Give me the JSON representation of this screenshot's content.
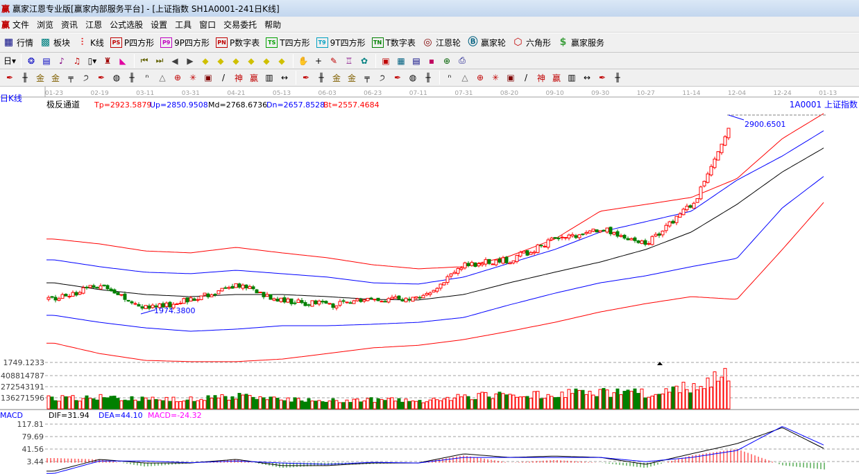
{
  "window": {
    "logo": "赢",
    "title": "赢家江恩专业版[赢家内部服务平台] - [上证指数  SH1A0001-241日K线]"
  },
  "menu": [
    "文件",
    "浏览",
    "资讯",
    "江恩",
    "公式选股",
    "设置",
    "工具",
    "窗口",
    "交易委托",
    "帮助"
  ],
  "toolbar1": [
    {
      "label": "行情",
      "icon": "quote-table-icon",
      "glyph": "▦",
      "color": "#000080"
    },
    {
      "label": "板块",
      "icon": "sector-blocks-icon",
      "glyph": "▩",
      "color": "#008080"
    },
    {
      "label": "K线",
      "icon": "candlestick-icon",
      "glyph": "⫶",
      "color": "#e00000"
    },
    {
      "label": "P四方形",
      "icon": "ps-icon",
      "glyph": "PS",
      "color": "#c00000"
    },
    {
      "label": "9P四方形",
      "icon": "p9-icon",
      "glyph": "P9",
      "color": "#c000c0"
    },
    {
      "label": "P数字表",
      "icon": "pn-icon",
      "glyph": "PN",
      "color": "#c00000"
    },
    {
      "label": "T四方形",
      "icon": "ts-icon",
      "glyph": "TS",
      "color": "#00a000"
    },
    {
      "label": "9T四方形",
      "icon": "t9-icon",
      "glyph": "T9",
      "color": "#00a0c0"
    },
    {
      "label": "T数字表",
      "icon": "tn-icon",
      "glyph": "TN",
      "color": "#008000"
    },
    {
      "label": "江恩轮",
      "icon": "gann-wheel-icon",
      "glyph": "◎",
      "color": "#800000"
    },
    {
      "label": "赢家轮",
      "icon": "big-wheel-icon",
      "glyph": "Ⓑ",
      "color": "#006080"
    },
    {
      "label": "六角形",
      "icon": "hexagon-icon",
      "glyph": "⬡",
      "color": "#c00000"
    },
    {
      "label": "赢家服务",
      "icon": "dollar-icon",
      "glyph": "$",
      "color": "#40a040"
    }
  ],
  "toolbar2": [
    {
      "icon": "period-day-dropdown-icon",
      "glyph": "日▾",
      "color": "#000"
    },
    "sep",
    {
      "icon": "overlay-icon",
      "glyph": "❂",
      "color": "#0000c0"
    },
    {
      "icon": "clipboard-icon",
      "glyph": "▤",
      "color": "#0000c0"
    },
    {
      "icon": "step-3-icon",
      "glyph": "♪",
      "color": "#800080"
    },
    {
      "icon": "step-9-icon",
      "glyph": "♫",
      "color": "#c00000"
    },
    {
      "icon": "candle-dropdown-icon",
      "glyph": "▯▾",
      "color": "#000"
    },
    {
      "icon": "map-icon",
      "glyph": "♜",
      "color": "#a00000"
    },
    {
      "icon": "flag-icon",
      "glyph": "◣",
      "color": "#e000a0"
    },
    "sep",
    {
      "icon": "first-icon",
      "glyph": "⏮",
      "color": "#606000"
    },
    {
      "icon": "last-icon",
      "glyph": "⏭",
      "color": "#606000"
    },
    {
      "icon": "left-icon",
      "glyph": "◀",
      "color": "#404040"
    },
    {
      "icon": "right-icon",
      "glyph": "▶",
      "color": "#404040"
    },
    {
      "icon": "move-left-icon",
      "glyph": "◆",
      "color": "#d0c000"
    },
    {
      "icon": "move-right-icon",
      "glyph": "◆",
      "color": "#d0c000"
    },
    {
      "icon": "expand-h-icon",
      "glyph": "◆",
      "color": "#d0c000"
    },
    {
      "icon": "shrink-h-icon",
      "glyph": "◆",
      "color": "#d0c000"
    },
    {
      "icon": "zoom-in-icon",
      "glyph": "◆",
      "color": "#d0c000"
    },
    {
      "icon": "zoom-out-icon",
      "glyph": "◆",
      "color": "#d0c000"
    },
    "sep",
    {
      "icon": "hand-icon",
      "glyph": "✋",
      "color": "#000"
    },
    {
      "icon": "crosshair-icon",
      "glyph": "+",
      "color": "#000"
    },
    {
      "icon": "line-tool-icon",
      "glyph": "✎",
      "color": "#c00000"
    },
    {
      "icon": "tower-icon",
      "glyph": "♖",
      "color": "#800080"
    },
    {
      "icon": "brain-icon",
      "glyph": "✿",
      "color": "#008080"
    },
    "sep",
    {
      "icon": "calendar-icon",
      "glyph": "▣",
      "color": "#c00000"
    },
    {
      "icon": "calculator-icon",
      "glyph": "▦",
      "color": "#006080"
    },
    {
      "icon": "notes-icon",
      "glyph": "▤",
      "color": "#000080"
    },
    {
      "icon": "save-icon",
      "glyph": "▪",
      "color": "#c00060"
    },
    {
      "icon": "network-icon",
      "glyph": "⊕",
      "color": "#006000"
    },
    {
      "icon": "print-icon",
      "glyph": "⎙",
      "color": "#000080"
    }
  ],
  "toolbar3": [
    "pen-icon",
    "parallel-lines-icon",
    "gold-1-icon",
    "gold-2-icon",
    "f-lines-icon",
    "spiral-icon",
    "pen-scale-icon",
    "circle-lines-icon",
    "grid-lines-icon",
    "n-square-icon",
    "triangle-icon",
    "target-icon",
    "web-icon",
    "square-spiral-icon",
    "slash-icon",
    "shen-icon",
    "ying-icon",
    "ruler-123-icon",
    "width-icon",
    "sep",
    "box-icon",
    "fan-icon",
    "square-fan-icon",
    "purple-fan-icon",
    "angle-icon",
    "v-icon",
    "grid-box-icon",
    "grid-box-2-icon",
    "diag-lines-icon",
    "sep",
    "list-icon",
    "percent-fan-icon",
    "percent-icon",
    "coin-icon",
    "tool-a-icon",
    "tool-b-icon",
    "tool-c-icon",
    "tool-d-icon",
    "tool-e-icon",
    "tool-f-icon",
    "tool-g-icon",
    "tool-h-icon"
  ],
  "chart_header": {
    "period": "日K线",
    "indicator": "极反通道",
    "tp": "Tp=2923.5879",
    "up": "Up=2850.9508",
    "md": "Md=2768.6736",
    "dn": "Dn=2657.8528",
    "bt": "Bt=2557.4684",
    "symbol": "1A0001  上证指数",
    "high_label": "2900.6501",
    "low_label": "1974.3800"
  },
  "macd_header": {
    "name": "MACD",
    "dif": "DIF=31.94",
    "dea": "DEA=44.10",
    "macd": "MACD=-24.32"
  },
  "colors": {
    "up": "#ff0000",
    "down": "#008000",
    "tp": "#ff0000",
    "upband": "#0000ff",
    "md": "#000000",
    "dn": "#0000ff",
    "bt": "#ff0000",
    "dif": "#000000",
    "dea": "#0000ff"
  },
  "chart_data": {
    "type": "candlestick",
    "x_ticks": [
      "01-23",
      "02-19",
      "03-11",
      "03-31",
      "04-21",
      "05-13",
      "06-03",
      "06-23",
      "07-11",
      "07-31",
      "08-20",
      "09-10",
      "09-30",
      "10-27",
      "11-14",
      "12-04",
      "12-24",
      "01-13"
    ],
    "price": {
      "high": 2900.6501,
      "low": 1974.38,
      "close_at_ticks": [
        2033,
        2105,
        1990,
        2033,
        2105,
        2023,
        2007,
        2030,
        2033,
        2196,
        2219,
        2317,
        2366,
        2300,
        2480,
        2880
      ]
    },
    "bands": {
      "Tp": [
        2317,
        2294,
        2261,
        2252,
        2278,
        2252,
        2229,
        2196,
        2177,
        2187,
        2236,
        2317,
        2448,
        2480,
        2513,
        2601,
        2790,
        2920
      ],
      "Up": [
        2219,
        2187,
        2161,
        2154,
        2170,
        2154,
        2138,
        2111,
        2105,
        2138,
        2203,
        2268,
        2350,
        2399,
        2448,
        2594,
        2708,
        2839
      ],
      "Md": [
        2111,
        2079,
        2056,
        2046,
        2056,
        2056,
        2046,
        2033,
        2030,
        2056,
        2111,
        2161,
        2209,
        2268,
        2350,
        2480,
        2633,
        2757
      ],
      "Dn": [
        1958,
        1925,
        1899,
        1883,
        1893,
        1909,
        1909,
        1916,
        1925,
        1948,
        2007,
        2062,
        2111,
        2144,
        2187,
        2226,
        2464,
        2627
      ],
      "Bt": [
        1827,
        1778,
        1746,
        1740,
        1740,
        1752,
        1778,
        1805,
        1817,
        1844,
        1883,
        1925,
        1974,
        2013,
        2046,
        2033,
        2268,
        2512
      ]
    },
    "volume": {
      "axis_labels": [
        "1749.1233",
        "408814787",
        "272543191",
        "136271596"
      ],
      "at_ticks": [
        130000000,
        140000000,
        110000000,
        120000000,
        150000000,
        110000000,
        100000000,
        110000000,
        100000000,
        150000000,
        170000000,
        180000000,
        200000000,
        190000000,
        280000000,
        480000000
      ]
    },
    "macd": {
      "axis_labels": [
        "117.81",
        "79.69",
        "41.56",
        "3.44"
      ],
      "DIF": [
        -26,
        10,
        -1,
        -1,
        10,
        -9,
        -9,
        -1,
        -1,
        27,
        16,
        20,
        16,
        -5,
        27,
        58,
        107,
        37
      ],
      "DEA": [
        -33,
        5,
        5,
        0,
        5,
        -1,
        -5,
        1,
        -1,
        16,
        16,
        16,
        16,
        3,
        16,
        37,
        111,
        48
      ]
    }
  }
}
